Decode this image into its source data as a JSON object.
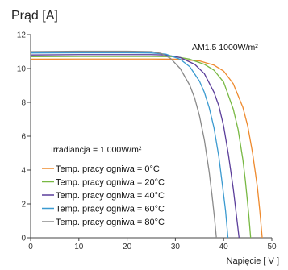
{
  "chart_data": {
    "type": "line",
    "ylabel": "Prąd [A]",
    "xlabel": "Napięcie [ V ]",
    "xlim": [
      0,
      50
    ],
    "ylim": [
      0,
      12
    ],
    "xticks": [
      0,
      10,
      20,
      30,
      40,
      50
    ],
    "yticks": [
      0,
      2,
      4,
      6,
      8,
      10,
      12
    ],
    "grid": false,
    "legend_position": "lower-left",
    "annotations": {
      "condition": "AM1.5  1000W/m²",
      "irradiance": "Irradiancja = 1.000W/m²"
    },
    "series": [
      {
        "name": "Temp. pracy ogniwa = 0°C",
        "color": "#ee8a2e",
        "x": [
          0,
          10,
          20,
          25,
          30,
          35,
          38,
          40,
          42,
          44,
          45,
          46,
          47,
          47.5,
          48
        ],
        "y": [
          10.55,
          10.56,
          10.56,
          10.56,
          10.55,
          10.45,
          10.2,
          9.85,
          9.1,
          7.7,
          6.6,
          5.0,
          3.0,
          1.6,
          0
        ]
      },
      {
        "name": "Temp. pracy ogniwa = 20°C",
        "color": "#78b843",
        "x": [
          0,
          10,
          20,
          25,
          30,
          33,
          36,
          38,
          40,
          42,
          43,
          44,
          44.5,
          45.2,
          45.6
        ],
        "y": [
          10.7,
          10.71,
          10.71,
          10.71,
          10.7,
          10.55,
          10.25,
          9.9,
          9.2,
          7.6,
          6.4,
          4.6,
          3.4,
          1.4,
          0
        ]
      },
      {
        "name": "Temp. pracy ogniwa = 40°C",
        "color": "#5b3e9a",
        "x": [
          0,
          10,
          20,
          25,
          28,
          31,
          34,
          36,
          38,
          39,
          40,
          41,
          42,
          42.5,
          43.2
        ],
        "y": [
          10.8,
          10.82,
          10.82,
          10.82,
          10.8,
          10.65,
          10.25,
          9.7,
          8.6,
          7.8,
          6.6,
          4.9,
          2.9,
          1.7,
          0
        ]
      },
      {
        "name": "Temp. pracy ogniwa = 60°C",
        "color": "#3b9ad0",
        "x": [
          0,
          10,
          20,
          25,
          28,
          31,
          33,
          35,
          36,
          37,
          38,
          39,
          39.8,
          40.4,
          40.9
        ],
        "y": [
          10.92,
          10.93,
          10.93,
          10.92,
          10.85,
          10.55,
          10.1,
          9.25,
          8.6,
          7.7,
          6.5,
          4.8,
          3.0,
          1.6,
          0
        ]
      },
      {
        "name": "Temp. pracy ogniwa = 80°C",
        "color": "#8a8a8a",
        "x": [
          0,
          10,
          20,
          25,
          27,
          29,
          31,
          33,
          34,
          35,
          36,
          37,
          37.6,
          38.1,
          38.5
        ],
        "y": [
          11.0,
          11.02,
          11.02,
          11.0,
          10.9,
          10.6,
          10.0,
          9.0,
          8.25,
          7.2,
          5.8,
          3.9,
          2.5,
          1.2,
          0
        ]
      }
    ]
  }
}
